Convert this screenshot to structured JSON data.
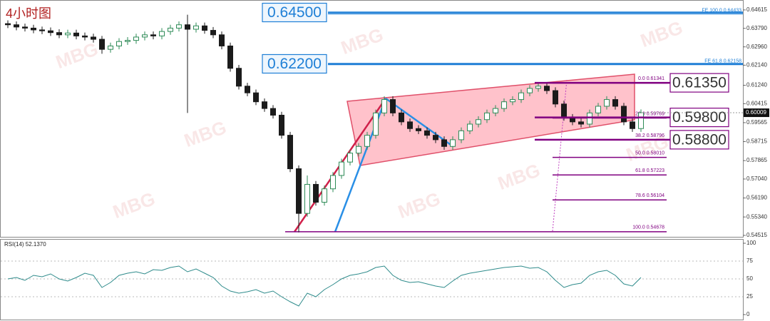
{
  "chart_data": [
    {
      "type": "candlestick",
      "title": "4小时图",
      "watermark": "MBG",
      "up_color": "#2e8b57",
      "down_color": "#1b1b1b",
      "ylim": [
        0.5445,
        0.649
      ],
      "yticks": [
        0.64615,
        {
          "value": 0.6379,
          "label": "0.63790"
        },
        {
          "value": 0.6296,
          "label": "0.62960"
        },
        {
          "value": 0.6214,
          "label": "0.62140"
        },
        {
          "value": 0.6124,
          "label": "0.61240"
        },
        0.60415,
        0.59565,
        0.58715,
        0.57865,
        {
          "value": 0.5704,
          "label": "0.57040"
        },
        {
          "value": 0.5619,
          "label": "0.56190"
        },
        {
          "value": 0.5534,
          "label": "0.55340"
        },
        0.54515
      ],
      "last_price": {
        "value": 0.60009,
        "label": "0.60009"
      },
      "open": [
        0.64,
        0.6395,
        0.6385,
        0.638,
        0.6372,
        0.6368,
        0.636,
        0.635,
        0.6358,
        0.6345,
        0.634,
        0.633,
        0.6285,
        0.63,
        0.632,
        0.6325,
        0.634,
        0.635,
        0.6345,
        0.6365,
        0.638,
        0.6395,
        0.6375,
        0.639,
        0.637,
        0.635,
        0.63,
        0.62,
        0.612,
        0.609,
        0.605,
        0.602,
        0.599,
        0.59,
        0.575,
        0.555,
        0.568,
        0.56,
        0.566,
        0.572,
        0.578,
        0.582,
        0.585,
        0.59,
        0.6,
        0.606,
        0.6,
        0.596,
        0.593,
        0.592,
        0.59,
        0.588,
        0.585,
        0.588,
        0.592,
        0.595,
        0.597,
        0.6,
        0.602,
        0.605,
        0.606,
        0.609,
        0.611,
        0.612,
        0.61,
        0.604,
        0.598,
        0.596,
        0.595,
        0.6,
        0.603,
        0.606,
        0.603,
        0.596,
        0.593
      ],
      "high": [
        0.6415,
        0.641,
        0.64,
        0.6395,
        0.6387,
        0.6383,
        0.6375,
        0.6373,
        0.6373,
        0.636,
        0.6355,
        0.6345,
        0.6315,
        0.6335,
        0.634,
        0.6355,
        0.6365,
        0.6365,
        0.638,
        0.6395,
        0.641,
        0.644,
        0.6405,
        0.6405,
        0.6385,
        0.6365,
        0.6315,
        0.6215,
        0.6135,
        0.6105,
        0.6065,
        0.6035,
        0.6005,
        0.5915,
        0.5765,
        0.572,
        0.5695,
        0.5675,
        0.5735,
        0.5795,
        0.5835,
        0.5865,
        0.5915,
        0.6015,
        0.6075,
        0.6075,
        0.6015,
        0.5975,
        0.5945,
        0.5935,
        0.5915,
        0.5895,
        0.5895,
        0.5935,
        0.5965,
        0.5985,
        0.6015,
        0.6035,
        0.6065,
        0.6075,
        0.6105,
        0.6125,
        0.6135,
        0.6135,
        0.6115,
        0.6055,
        0.5995,
        0.5975,
        0.6015,
        0.6045,
        0.6075,
        0.6075,
        0.6045,
        0.5975,
        0.6016
      ],
      "low": [
        0.638,
        0.637,
        0.6365,
        0.6357,
        0.6353,
        0.6345,
        0.6335,
        0.6335,
        0.633,
        0.6325,
        0.6315,
        0.6265,
        0.627,
        0.6285,
        0.6305,
        0.631,
        0.6325,
        0.633,
        0.633,
        0.635,
        0.6365,
        0.6,
        0.636,
        0.6355,
        0.6335,
        0.6285,
        0.6185,
        0.6105,
        0.6075,
        0.6035,
        0.6005,
        0.5975,
        0.5885,
        0.5735,
        0.5465,
        0.5535,
        0.5585,
        0.5585,
        0.5645,
        0.5705,
        0.5765,
        0.5805,
        0.5835,
        0.5885,
        0.5985,
        0.5985,
        0.5945,
        0.5915,
        0.5905,
        0.5885,
        0.5865,
        0.5835,
        0.5835,
        0.5865,
        0.5905,
        0.5935,
        0.5955,
        0.5985,
        0.6005,
        0.6035,
        0.6045,
        0.6075,
        0.6095,
        0.6085,
        0.6025,
        0.5965,
        0.5945,
        0.5935,
        0.5935,
        0.5985,
        0.6015,
        0.6015,
        0.5945,
        0.5915,
        0.5915
      ],
      "close": [
        0.6395,
        0.6385,
        0.638,
        0.6372,
        0.6368,
        0.636,
        0.635,
        0.6358,
        0.6345,
        0.634,
        0.633,
        0.6285,
        0.63,
        0.632,
        0.6325,
        0.634,
        0.635,
        0.6345,
        0.6365,
        0.638,
        0.6395,
        0.6375,
        0.639,
        0.637,
        0.635,
        0.63,
        0.62,
        0.612,
        0.609,
        0.605,
        0.602,
        0.599,
        0.59,
        0.575,
        0.555,
        0.568,
        0.56,
        0.566,
        0.572,
        0.578,
        0.582,
        0.585,
        0.59,
        0.6,
        0.606,
        0.6,
        0.596,
        0.593,
        0.592,
        0.59,
        0.588,
        0.585,
        0.588,
        0.592,
        0.595,
        0.597,
        0.6,
        0.602,
        0.605,
        0.606,
        0.609,
        0.611,
        0.612,
        0.61,
        0.604,
        0.598,
        0.596,
        0.595,
        0.6,
        0.603,
        0.606,
        0.603,
        0.596,
        0.593,
        0.6001
      ],
      "levels": [
        {
          "label": "0.64500",
          "value": 0.645,
          "color": "#1e7fd6"
        },
        {
          "label": "0.62200",
          "value": 0.622,
          "color": "#1e7fd6"
        },
        {
          "label": "0.61350",
          "value": 0.6135,
          "color": "#800080"
        },
        {
          "label": "0.59800",
          "value": 0.598,
          "color": "#800080"
        },
        {
          "label": "0.58800",
          "value": 0.588,
          "color": "#800080"
        }
      ],
      "fe": [
        {
          "label": "FE 100.0  0.64433",
          "value": 0.64433
        },
        {
          "label": "FE 61.8  0.62158",
          "value": 0.62158
        }
      ],
      "fibonacci": [
        {
          "label": "0.0  0.61341",
          "value": 0.61341
        },
        {
          "label": "23.6  0.59769",
          "value": 0.59769
        },
        {
          "label": "38.2  0.58796",
          "value": 0.58796
        },
        {
          "label": "50.0  0.58010",
          "value": 0.5801
        },
        {
          "label": "61.8  0.57223",
          "value": 0.57223
        },
        {
          "label": "78.6  0.56104",
          "value": 0.56104
        },
        {
          "label": "100.0  0.54678",
          "value": 0.54678
        }
      ]
    },
    {
      "type": "line",
      "title": "RSI(14) 52.1370",
      "color": "#2e8b8b",
      "ylim": [
        0,
        100
      ],
      "yticks": [
        100,
        75,
        50,
        25,
        0
      ],
      "grid": true,
      "values": [
        50,
        52,
        48,
        55,
        53,
        57,
        50,
        47,
        52,
        58,
        55,
        38,
        45,
        55,
        58,
        60,
        57,
        63,
        62,
        66,
        68,
        60,
        64,
        58,
        52,
        40,
        33,
        30,
        32,
        35,
        30,
        33,
        25,
        18,
        12,
        30,
        25,
        35,
        42,
        50,
        55,
        57,
        60,
        66,
        68,
        55,
        48,
        45,
        46,
        43,
        40,
        38,
        47,
        55,
        58,
        60,
        62,
        64,
        66,
        67,
        68,
        65,
        66,
        60,
        48,
        38,
        42,
        44,
        55,
        60,
        62,
        55,
        43,
        40,
        52
      ]
    }
  ]
}
